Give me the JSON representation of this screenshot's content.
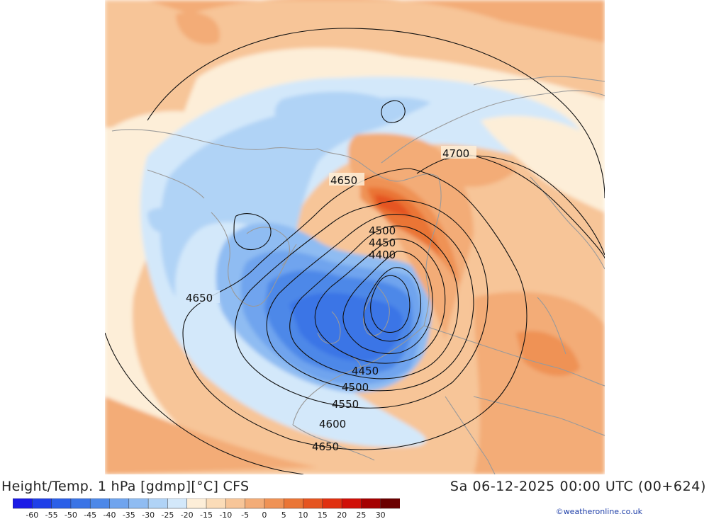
{
  "header": {
    "title": "Height/Temp. 1 hPa [gdmp][°C] CFS",
    "datetime": "Sa 06-12-2025 00:00 UTC (00+624)"
  },
  "credit": "©weatheronline.co.uk",
  "map": {
    "contour_labels": [
      "4700",
      "4650",
      "4500",
      "4450",
      "4400",
      "4650",
      "4450",
      "4500",
      "4550",
      "4600",
      "4650"
    ],
    "contour_color": "#111111",
    "coastline_color": "#9a9a9a"
  },
  "legend": {
    "ticks": [
      "-60",
      "-55",
      "-50",
      "-45",
      "-40",
      "-35",
      "-30",
      "-25",
      "-20",
      "-15",
      "-10",
      "-5",
      "0",
      "5",
      "10",
      "15",
      "20",
      "25",
      "30"
    ],
    "colors": [
      "#1a1ae6",
      "#1f3fe8",
      "#2b5fe8",
      "#3a74e6",
      "#4d88e8",
      "#6fa4ee",
      "#8fbcf2",
      "#b0d3f6",
      "#d3e8fa",
      "#fdeed8",
      "#fbdcb8",
      "#f7c598",
      "#f3ac77",
      "#ef9255",
      "#ea7535",
      "#e55420",
      "#e03010",
      "#d01008",
      "#a50000",
      "#6b0000"
    ]
  }
}
